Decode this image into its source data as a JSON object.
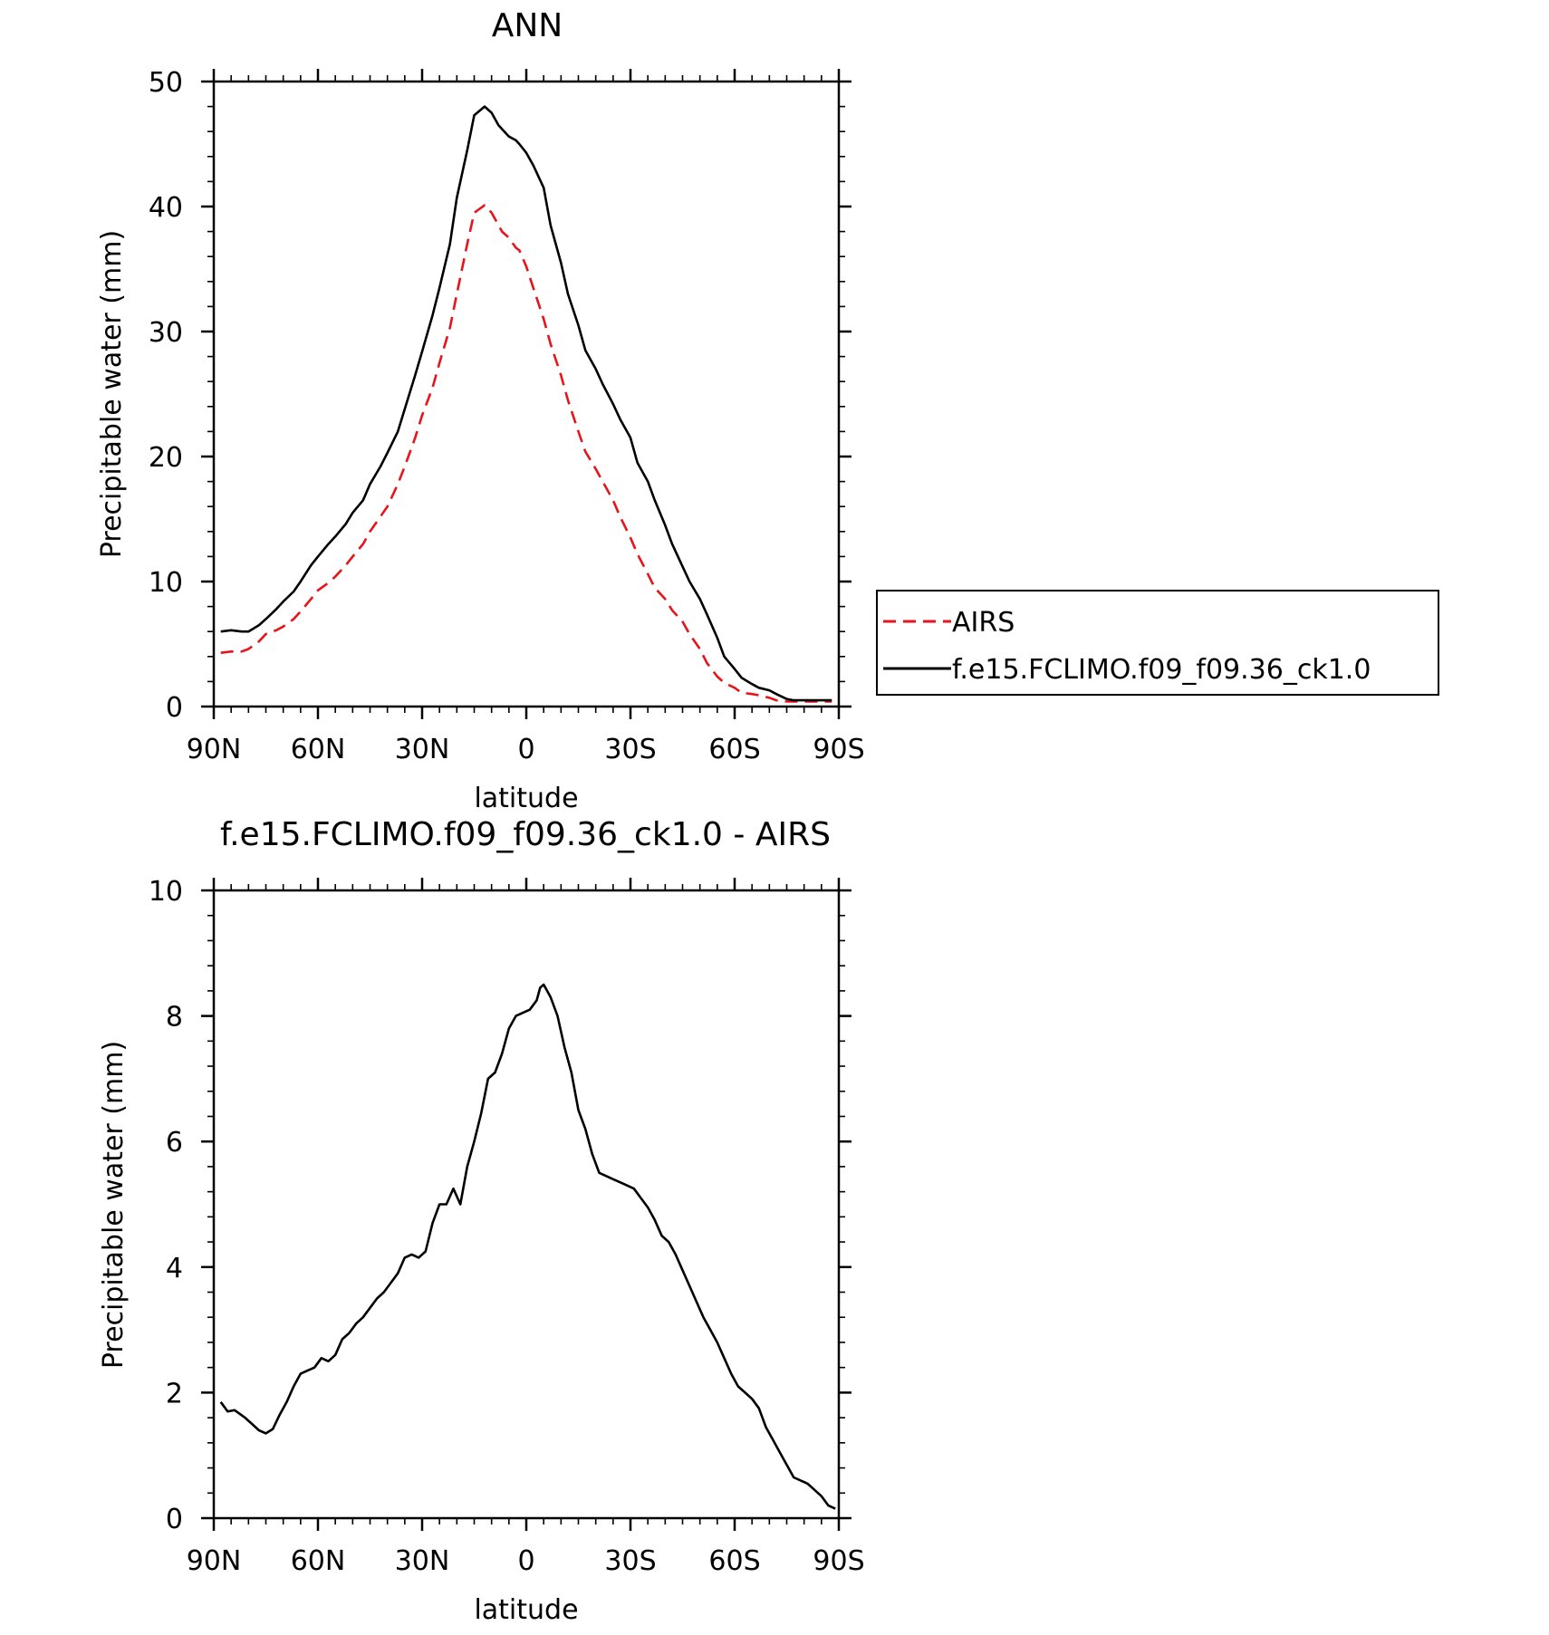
{
  "chart_data": [
    {
      "type": "line",
      "title": "ANN",
      "xlabel": "latitude",
      "ylabel": "Precipitable water (mm)",
      "xlim": [
        -90,
        90
      ],
      "ylim": [
        0,
        50
      ],
      "x_direction": "north-to-south",
      "x_tick_values": [
        90,
        60,
        30,
        0,
        -30,
        -60,
        -90
      ],
      "x_tick_labels": [
        "90N",
        "60N",
        "30N",
        "0",
        "30S",
        "60S",
        "90S"
      ],
      "y_ticks": [
        0,
        10,
        20,
        30,
        40,
        50
      ],
      "grid": false,
      "legend_placement": "right",
      "series": [
        {
          "name": "AIRS",
          "color": "#e8141b",
          "style": "dashed",
          "x": [
            88,
            85,
            82,
            80,
            77,
            75,
            72,
            70,
            67,
            65,
            62,
            60,
            57,
            55,
            52,
            50,
            47,
            45,
            42,
            40,
            37,
            35,
            32,
            30,
            27,
            25,
            22,
            20,
            17,
            15,
            12,
            10,
            7,
            5,
            3,
            2,
            0,
            -2,
            -5,
            -7,
            -10,
            -12,
            -15,
            -17,
            -20,
            -22,
            -25,
            -27,
            -30,
            -32,
            -35,
            -37,
            -40,
            -42,
            -45,
            -47,
            -50,
            -52,
            -55,
            -57,
            -60,
            -62,
            -65,
            -67,
            -70,
            -72,
            -75,
            -77,
            -80,
            -82,
            -85,
            -87,
            -88
          ],
          "y": [
            4.3,
            4.4,
            4.4,
            4.6,
            5.2,
            5.8,
            6.1,
            6.4,
            7.0,
            7.6,
            8.6,
            9.3,
            9.9,
            10.4,
            11.3,
            12.0,
            13.0,
            14.0,
            15.2,
            16.0,
            17.8,
            19.2,
            21.5,
            23.3,
            25.5,
            27.5,
            30.3,
            33.0,
            37.0,
            39.5,
            40.1,
            39.5,
            38.0,
            37.5,
            36.7,
            36.5,
            35.2,
            33.5,
            31.0,
            29.0,
            26.5,
            24.5,
            22.0,
            20.4,
            19.0,
            18.0,
            16.5,
            15.2,
            13.5,
            12.2,
            10.6,
            9.5,
            8.6,
            7.7,
            6.8,
            5.8,
            4.6,
            3.5,
            2.4,
            1.9,
            1.5,
            1.1,
            1.0,
            0.9,
            0.7,
            0.5,
            0.4,
            0.4,
            0.4,
            0.4,
            0.4,
            0.4,
            0.4
          ]
        },
        {
          "name": "f.e15.FCLIMO.f09_f09.36_ck1.0",
          "color": "#000000",
          "style": "solid",
          "x": [
            88,
            85,
            82,
            80,
            77,
            75,
            72,
            70,
            67,
            65,
            62,
            60,
            57,
            55,
            52,
            50,
            47,
            45,
            42,
            40,
            37,
            35,
            32,
            30,
            27,
            25,
            22,
            20,
            17,
            15,
            12,
            10,
            8,
            5,
            3,
            2,
            0,
            -2,
            -5,
            -7,
            -10,
            -12,
            -15,
            -17,
            -20,
            -22,
            -25,
            -27,
            -30,
            -32,
            -35,
            -37,
            -40,
            -42,
            -45,
            -47,
            -50,
            -52,
            -55,
            -57,
            -60,
            -62,
            -65,
            -67,
            -70,
            -72,
            -75,
            -77,
            -80,
            -82,
            -85,
            -87,
            -88
          ],
          "y": [
            6.0,
            6.1,
            6.0,
            6.0,
            6.5,
            7.0,
            7.8,
            8.4,
            9.2,
            10.0,
            11.3,
            12.0,
            13.0,
            13.6,
            14.6,
            15.5,
            16.5,
            17.8,
            19.2,
            20.3,
            22.0,
            23.8,
            26.5,
            28.4,
            31.3,
            33.5,
            37.0,
            40.7,
            44.5,
            47.3,
            48.0,
            47.5,
            46.5,
            45.6,
            45.3,
            45.0,
            44.3,
            43.3,
            41.5,
            38.5,
            35.5,
            33.0,
            30.5,
            28.5,
            27.0,
            25.8,
            24.2,
            23.0,
            21.5,
            19.5,
            18.0,
            16.5,
            14.5,
            13.0,
            11.2,
            10.0,
            8.6,
            7.4,
            5.5,
            4.0,
            3.0,
            2.3,
            1.8,
            1.5,
            1.3,
            1.0,
            0.6,
            0.5,
            0.5,
            0.5,
            0.5,
            0.5,
            0.5
          ]
        }
      ]
    },
    {
      "type": "line",
      "title": "f.e15.FCLIMO.f09_f09.36_ck1.0 - AIRS",
      "xlabel": "latitude",
      "ylabel": "Precipitable water (mm)",
      "xlim": [
        -90,
        90
      ],
      "ylim": [
        0,
        10
      ],
      "x_direction": "north-to-south",
      "x_tick_values": [
        90,
        60,
        30,
        0,
        -30,
        -60,
        -90
      ],
      "x_tick_labels": [
        "90N",
        "60N",
        "30N",
        "0",
        "30S",
        "60S",
        "90S"
      ],
      "y_ticks": [
        0,
        2,
        4,
        6,
        8,
        10
      ],
      "grid": false,
      "series": [
        {
          "color": "#000000",
          "style": "solid",
          "x": [
            88,
            86,
            84,
            81,
            79,
            77,
            75,
            73,
            71,
            69,
            67,
            65,
            63,
            61,
            59,
            57,
            55,
            53,
            51,
            49,
            47,
            45,
            43,
            41,
            39,
            37,
            35,
            33,
            31,
            29,
            27,
            25,
            23,
            21,
            19,
            17,
            15,
            13,
            11,
            9,
            7,
            5,
            3,
            1,
            -1,
            -3,
            -4,
            -5,
            -7,
            -9,
            -11,
            -13,
            -15,
            -17,
            -19,
            -21,
            -23,
            -25,
            -27,
            -29,
            -31,
            -33,
            -35,
            -37,
            -39,
            -41,
            -43,
            -45,
            -47,
            -49,
            -51,
            -53,
            -55,
            -57,
            -59,
            -61,
            -63,
            -65,
            -67,
            -69,
            -71,
            -73,
            -75,
            -77,
            -79,
            -81,
            -83,
            -85,
            -87,
            -89
          ],
          "y": [
            1.85,
            1.7,
            1.72,
            1.6,
            1.5,
            1.4,
            1.35,
            1.42,
            1.65,
            1.85,
            2.1,
            2.3,
            2.35,
            2.4,
            2.55,
            2.5,
            2.6,
            2.85,
            2.95,
            3.1,
            3.2,
            3.35,
            3.5,
            3.6,
            3.75,
            3.9,
            4.15,
            4.2,
            4.15,
            4.25,
            4.7,
            5.0,
            5.0,
            5.25,
            5.0,
            5.6,
            6.0,
            6.45,
            7.0,
            7.1,
            7.4,
            7.8,
            8.0,
            8.05,
            8.1,
            8.25,
            8.45,
            8.5,
            8.3,
            8.0,
            7.5,
            7.1,
            6.5,
            6.2,
            5.8,
            5.5,
            5.45,
            5.4,
            5.35,
            5.3,
            5.25,
            5.1,
            4.95,
            4.75,
            4.5,
            4.4,
            4.2,
            3.95,
            3.7,
            3.45,
            3.2,
            3.0,
            2.8,
            2.55,
            2.3,
            2.1,
            2.0,
            1.9,
            1.75,
            1.45,
            1.25,
            1.05,
            0.85,
            0.65,
            0.6,
            0.55,
            0.45,
            0.35,
            0.2,
            0.15
          ]
        }
      ]
    }
  ]
}
